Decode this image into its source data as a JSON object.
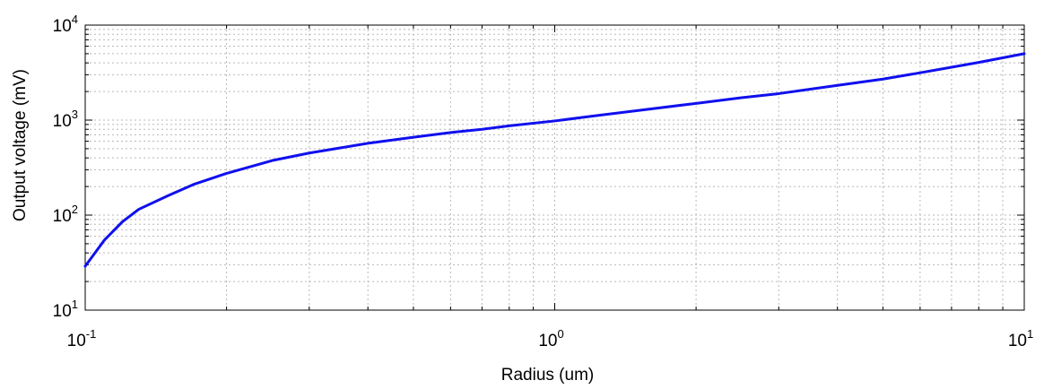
{
  "chart_data": {
    "type": "line",
    "title": "",
    "xlabel": "Radius (um)",
    "ylabel": "Output voltage (mV)",
    "xscale": "log",
    "yscale": "log",
    "xlim": [
      0.1,
      10
    ],
    "ylim": [
      10,
      10000
    ],
    "grid": true,
    "x_ticks": [
      {
        "value": 0.1,
        "base": "10",
        "exp": "-1"
      },
      {
        "value": 1,
        "base": "10",
        "exp": "0"
      },
      {
        "value": 10,
        "base": "10",
        "exp": "1"
      }
    ],
    "y_ticks": [
      {
        "value": 10,
        "base": "10",
        "exp": "1"
      },
      {
        "value": 100,
        "base": "10",
        "exp": "2"
      },
      {
        "value": 1000,
        "base": "10",
        "exp": "3"
      },
      {
        "value": 10000,
        "base": "10",
        "exp": "4"
      }
    ],
    "series": [
      {
        "color": "#1010ee",
        "x": [
          0.1,
          0.11,
          0.12,
          0.13,
          0.15,
          0.17,
          0.2,
          0.25,
          0.3,
          0.4,
          0.5,
          0.6,
          0.7,
          0.8,
          1.0,
          1.2,
          1.5,
          2.0,
          2.5,
          3.0,
          4.0,
          5.0,
          6.0,
          7.0,
          8.0,
          10.0
        ],
        "y": [
          29,
          55,
          85,
          115,
          160,
          210,
          275,
          375,
          450,
          570,
          660,
          740,
          800,
          870,
          980,
          1100,
          1260,
          1500,
          1720,
          1900,
          2320,
          2700,
          3150,
          3600,
          4050,
          5000
        ]
      }
    ]
  }
}
